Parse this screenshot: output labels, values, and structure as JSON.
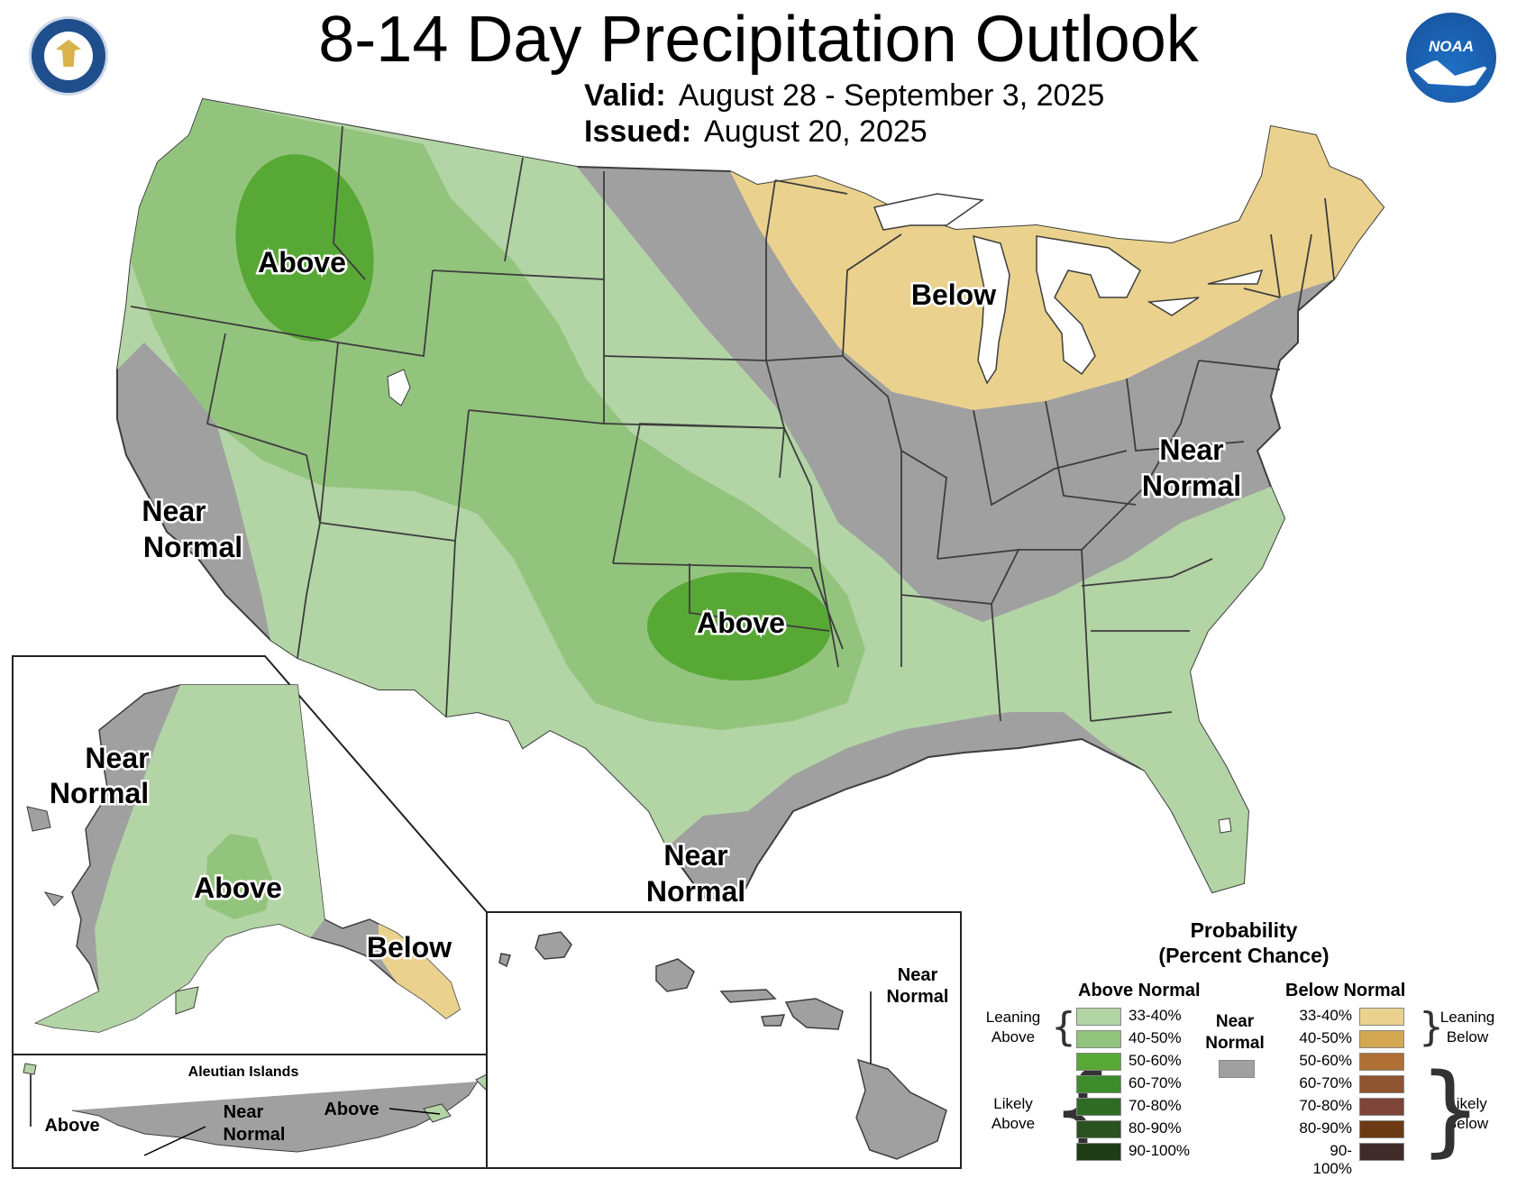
{
  "title": "8-14 Day Precipitation Outlook",
  "valid": {
    "label": "Valid:",
    "value": "August 28 - September 3, 2025"
  },
  "issued": {
    "label": "Issued:",
    "value": "August 20, 2025"
  },
  "logos": {
    "left": "department-of-commerce-seal",
    "right": "noaa-logo",
    "noaa_text": "NOAA"
  },
  "colors": {
    "above_33_40": "#b3d4a5",
    "above_40_50": "#93c47d",
    "above_50_60": "#58a836",
    "above_60_70": "#3c8c2b",
    "above_70_80": "#2f6b25",
    "above_80_90": "#2a5220",
    "above_90_100": "#1f3d17",
    "near_normal": "#a0a0a1",
    "below_33_40": "#ead28e",
    "below_40_50": "#d4a752",
    "below_50_60": "#b06f34",
    "below_60_70": "#8f5430",
    "below_70_80": "#7d4437",
    "below_80_90": "#6b3a14",
    "below_90_100": "#3e2b2a",
    "water": "#ffffff",
    "border": "#3d3d3d"
  },
  "map_labels": {
    "northwest_above": "Above",
    "great_lakes_below": "Below",
    "mid_atlantic_near": "Near",
    "mid_atlantic_normal": "Normal",
    "california_near": "Near",
    "california_normal": "Normal",
    "oklahoma_above": "Above",
    "texas_near": "Near",
    "texas_normal": "Normal"
  },
  "alaska_labels": {
    "west_near": "Near",
    "west_normal": "Normal",
    "interior_above": "Above",
    "southeast_below": "Below"
  },
  "aleutian": {
    "title": "Aleutian Islands",
    "left_above": "Above",
    "near": "Near",
    "normal": "Normal",
    "right_above": "Above"
  },
  "hawaii": {
    "near": "Near",
    "normal": "Normal"
  },
  "legend": {
    "title_line1": "Probability",
    "title_line2": "(Percent Chance)",
    "above_header": "Above Normal",
    "below_header": "Below Normal",
    "near_line1": "Near",
    "near_line2": "Normal",
    "leaning_above_1": "Leaning",
    "leaning_above_2": "Above",
    "likely_above_1": "Likely",
    "likely_above_2": "Above",
    "leaning_below_1": "Leaning",
    "leaning_below_2": "Below",
    "likely_below_1": "Likely",
    "likely_below_2": "Below",
    "ranges": [
      "33-40%",
      "40-50%",
      "50-60%",
      "60-70%",
      "70-80%",
      "80-90%",
      "90-100%"
    ]
  }
}
